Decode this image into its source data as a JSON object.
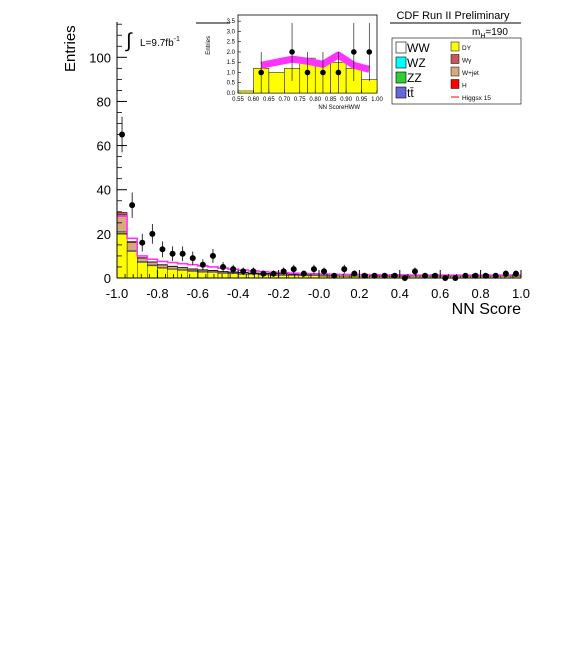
{
  "chart_data": [
    {
      "panel": "main",
      "type": "bar",
      "header": "CDF Run II Preliminary",
      "luminosity_label": "L=9.7fb",
      "luminosity_exponent": "-1",
      "mass_label": "m",
      "mass_subscript": "H",
      "mass_value": "=190",
      "xlabel": "NN Score",
      "ylabel": "Entries",
      "xlim": [
        -1.0,
        1.0
      ],
      "ylim": [
        0,
        116
      ],
      "x_ticks": [
        "-1.0",
        "-0.8",
        "-0.6",
        "-0.4",
        "-0.2",
        "-0.0",
        "0.2",
        "0.4",
        "0.6",
        "0.8",
        "1.0"
      ],
      "y_ticks": [
        "0",
        "20",
        "40",
        "60",
        "80",
        "100"
      ],
      "bins": 40,
      "bin_width": 0.05,
      "series": [
        {
          "key": "DY",
          "color": "#ffff00",
          "values": [
            20.5,
            12.0,
            7.0,
            5.5,
            4.5,
            4.0,
            3.5,
            3.0,
            2.7,
            2.4,
            2.1,
            1.9,
            1.7,
            1.5,
            1.4,
            1.3,
            1.2,
            1.1,
            1.0,
            1.0,
            0.9,
            0.9,
            0.8,
            0.8,
            0.8,
            0.7,
            0.7,
            0.7,
            0.7,
            0.6,
            0.6,
            0.6,
            0.6,
            0.6,
            0.6,
            0.6,
            0.6,
            0.6,
            0.6,
            0.6
          ]
        },
        {
          "key": "WW",
          "color": "#ffffff",
          "values": [
            0.6,
            0.5,
            0.5,
            0.4,
            0.4,
            0.4,
            0.4,
            0.4,
            0.4,
            0.4,
            0.4,
            0.4,
            0.4,
            0.4,
            0.4,
            0.4,
            0.4,
            0.4,
            0.4,
            0.4,
            0.4,
            0.4,
            0.4,
            0.4,
            0.4,
            0.4,
            0.4,
            0.4,
            0.4,
            0.4,
            0.4,
            0.4,
            0.4,
            0.4,
            0.4,
            0.4,
            0.4,
            0.4,
            0.4,
            0.4
          ]
        },
        {
          "key": "W+jet",
          "color": "#d9a97e",
          "values": [
            7.5,
            3.5,
            1.5,
            1.2,
            1.0,
            0.8,
            0.7,
            0.6,
            0.5,
            0.5,
            0.4,
            0.4,
            0.4,
            0.3,
            0.3,
            0.3,
            0.3,
            0.3,
            0.3,
            0.3,
            0.2,
            0.2,
            0.2,
            0.2,
            0.2,
            0.2,
            0.2,
            0.2,
            0.2,
            0.2,
            0.2,
            0.2,
            0.2,
            0.2,
            0.2,
            0.2,
            0.2,
            0.2,
            0.2,
            0.2
          ]
        },
        {
          "key": "Wgamma",
          "color": "#cc5555",
          "values": [
            1.2,
            0.6,
            0.3,
            0.3,
            0.2,
            0.2,
            0.2,
            0.2,
            0.2,
            0.2,
            0.1,
            0.1,
            0.1,
            0.1,
            0.1,
            0.1,
            0.1,
            0.1,
            0.1,
            0.1,
            0.1,
            0.1,
            0.1,
            0.1,
            0.1,
            0.1,
            0.1,
            0.1,
            0.1,
            0.1,
            0.1,
            0.1,
            0.1,
            0.1,
            0.1,
            0.1,
            0.1,
            0.1,
            0.1,
            0.1
          ]
        }
      ],
      "signal_x15": {
        "color": "#ff33ff",
        "values": [
          28,
          18,
          10,
          8.5,
          7.5,
          7.0,
          6.5,
          6.0,
          5.5,
          5.0,
          4.5,
          4.0,
          3.6,
          3.2,
          2.9,
          2.6,
          2.4,
          2.2,
          2.0,
          1.9,
          1.8,
          1.7,
          1.6,
          1.6,
          1.5,
          1.5,
          1.4,
          1.4,
          1.4,
          1.3,
          1.3,
          1.3,
          1.3,
          1.3,
          1.3,
          1.3,
          1.3,
          1.3,
          1.3,
          1.3
        ]
      },
      "data": {
        "x": [
          -0.975,
          -0.925,
          -0.875,
          -0.825,
          -0.775,
          -0.725,
          -0.675,
          -0.625,
          -0.575,
          -0.525,
          -0.475,
          -0.425,
          -0.375,
          -0.325,
          -0.275,
          -0.225,
          -0.175,
          -0.125,
          -0.075,
          -0.025,
          0.025,
          0.075,
          0.125,
          0.175,
          0.225,
          0.275,
          0.325,
          0.375,
          0.425,
          0.475,
          0.525,
          0.575,
          0.625,
          0.675,
          0.725,
          0.775,
          0.825,
          0.875,
          0.925,
          0.975
        ],
        "y": [
          65,
          33,
          16,
          20,
          13,
          11,
          11,
          9,
          6,
          10,
          5,
          4,
          3,
          3,
          2,
          2,
          3,
          4,
          2,
          4,
          3,
          1,
          4,
          2,
          1,
          1,
          1,
          1,
          0,
          3,
          1,
          1,
          0,
          0,
          1,
          1,
          1,
          1,
          2,
          2
        ]
      }
    },
    {
      "panel": "inset",
      "type": "bar",
      "xlabel": "NN ScoreHWW",
      "ylabel": "Entries",
      "xlim": [
        0.55,
        1.0
      ],
      "ylim": [
        0,
        3.8
      ],
      "x_ticks": [
        "0.55",
        "0.60",
        "0.65",
        "0.70",
        "0.75",
        "0.80",
        "0.85",
        "0.90",
        "0.95",
        "1.00"
      ],
      "y_ticks": [
        "0.0",
        "0.5",
        "1.0",
        "1.5",
        "2.0",
        "2.5",
        "3.0",
        "3.5"
      ],
      "bin_edges": [
        0.55,
        0.6,
        0.65,
        0.7,
        0.75,
        0.8,
        0.85,
        0.9,
        0.95,
        1.0
      ],
      "background_total": [
        0.1,
        1.2,
        1.0,
        1.2,
        1.7,
        1.5,
        1.5,
        1.2,
        0.65
      ],
      "signal_x15": [
        0,
        1.35,
        1.5,
        1.65,
        1.55,
        1.4,
        1.85,
        1.35,
        1.15
      ],
      "data": {
        "x": [
          0.625,
          0.725,
          0.775,
          0.825,
          0.875,
          0.925,
          0.975
        ],
        "y": [
          1,
          2,
          1,
          1,
          1,
          2,
          2
        ]
      }
    }
  ],
  "legend": {
    "left": [
      {
        "label": "WW",
        "color": "#ffffff"
      },
      {
        "label": "WZ",
        "color": "#00ffff"
      },
      {
        "label": "ZZ",
        "color": "#33cc33"
      },
      {
        "label": "tt̄",
        "color": "#6666dd"
      }
    ],
    "right": [
      {
        "label": "DY",
        "color": "#ffff00",
        "kind": "box"
      },
      {
        "label": "Wγ",
        "color": "#cc5555",
        "kind": "box"
      },
      {
        "label": "W+jet",
        "color": "#d9a97e",
        "kind": "box"
      },
      {
        "label": "H",
        "color": "#ff0000",
        "kind": "box"
      },
      {
        "label": "Higgsx 15",
        "color": "#ff0000",
        "kind": "line"
      }
    ]
  }
}
